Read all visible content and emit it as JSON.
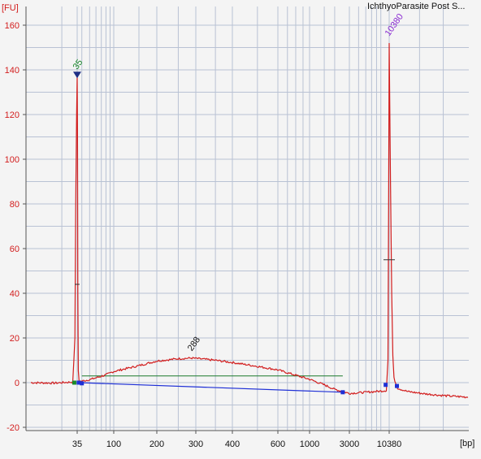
{
  "chart_data": {
    "type": "line",
    "title": "IchthyoParasite Post S...",
    "ylabel_unit": "[FU]",
    "xlabel_unit": "[bp]",
    "ylim": [
      -22,
      167
    ],
    "y_ticks": [
      -20,
      0,
      20,
      40,
      60,
      80,
      100,
      120,
      140,
      160
    ],
    "x_ticks": [
      "35",
      "100",
      "200",
      "300",
      "400",
      "600",
      "1000",
      "3000",
      "10380"
    ],
    "grid": true,
    "colors": {
      "trace": "#d21d1d",
      "baseline": "#1e2fd6",
      "region": "#1a7a2a",
      "lower_marker": "#1a8a2a",
      "upper_marker": "#8a2ad2",
      "plot_bg": "#f4f4f4",
      "grid": "#b9c2d4"
    },
    "series": [
      {
        "points": [
          [
            22,
            0.0
          ],
          [
            28,
            -0.2
          ],
          [
            33.5,
            0.3
          ],
          [
            34.2,
            20
          ],
          [
            34.5,
            80
          ],
          [
            34.8,
            120
          ],
          [
            35.0,
            137
          ],
          [
            35.3,
            110
          ],
          [
            35.7,
            40
          ],
          [
            36.2,
            5
          ],
          [
            37,
            0.5
          ],
          [
            50,
            1.3
          ],
          [
            80,
            3.5
          ],
          [
            100,
            5.0
          ],
          [
            150,
            7.6
          ],
          [
            200,
            9.7
          ],
          [
            250,
            10.7
          ],
          [
            288,
            11.0
          ],
          [
            350,
            10.0
          ],
          [
            400,
            9.0
          ],
          [
            500,
            7.3
          ],
          [
            600,
            5.7
          ],
          [
            800,
            3.3
          ],
          [
            1000,
            1.5
          ],
          [
            1500,
            -1.0
          ],
          [
            2000,
            -3.0
          ],
          [
            2500,
            -4.0
          ],
          [
            3000,
            -4.8
          ],
          [
            5000,
            -4.3
          ],
          [
            8000,
            -3.8
          ],
          [
            9500,
            -3.5
          ],
          [
            10000,
            10
          ],
          [
            10200,
            80
          ],
          [
            10380,
            152
          ],
          [
            10550,
            90
          ],
          [
            10700,
            40
          ],
          [
            10850,
            12
          ],
          [
            11000,
            2
          ],
          [
            11500,
            -2.5
          ],
          [
            13000,
            -4.0
          ],
          [
            16000,
            -5.0
          ],
          [
            20000,
            -5.8
          ],
          [
            27000,
            -6.5
          ]
        ]
      }
    ],
    "baseline": [
      [
        37,
        0.0
      ],
      [
        2500,
        -4.3
      ]
    ],
    "region": {
      "from": 40,
      "to": 2500,
      "level": 3.0
    },
    "peaks": [
      {
        "label": "35",
        "x": 35,
        "y": 137,
        "color": "#1a8a2a"
      },
      {
        "label": "288",
        "x": 288,
        "y": 11.0,
        "color": "#111111"
      },
      {
        "label": "10380",
        "x": 10380,
        "y": 152,
        "color": "#8a2ad2"
      }
    ],
    "markers": [
      {
        "x": 34,
        "y": 0.0,
        "color": "#1a8a2a"
      },
      {
        "x": 36.5,
        "y": 0.0,
        "color": "#1e2fd6"
      },
      {
        "x": 40,
        "y": -0.3,
        "color": "#1e2fd6"
      },
      {
        "x": 2500,
        "y": -4.3,
        "color": "#1e2fd6"
      },
      {
        "x": 9300,
        "y": -1.0,
        "color": "#1e2fd6"
      },
      {
        "x": 11400,
        "y": -1.5,
        "color": "#1e2fd6"
      }
    ]
  }
}
